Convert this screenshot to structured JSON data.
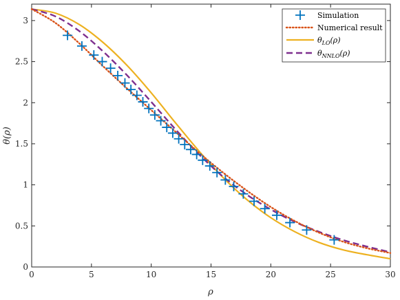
{
  "chart_data": {
    "type": "line",
    "title": "",
    "xlabel": "ρ",
    "ylabel": "θ(ρ)",
    "xlim": [
      0,
      30
    ],
    "ylim": [
      0,
      3.2
    ],
    "xticks": [
      0,
      5,
      10,
      15,
      20,
      25,
      30
    ],
    "yticks": [
      0,
      0.5,
      1,
      1.5,
      2,
      2.5,
      3
    ],
    "xtick_labels": [
      "0",
      "5",
      "10",
      "15",
      "20",
      "25",
      "30"
    ],
    "ytick_labels": [
      "0",
      "0.5",
      "1",
      "1.5",
      "2",
      "2.5",
      "3"
    ],
    "grid": false,
    "legend_position": "top-right",
    "series": [
      {
        "name": "Simulation",
        "style": "markers-plus",
        "color": "#0072BD",
        "x": [
          3.0,
          4.2,
          5.2,
          5.9,
          6.6,
          7.2,
          7.8,
          8.3,
          8.8,
          9.3,
          9.8,
          10.3,
          10.8,
          11.3,
          11.8,
          12.3,
          12.8,
          13.3,
          13.8,
          14.3,
          14.9,
          15.5,
          16.2,
          16.9,
          17.7,
          18.6,
          19.5,
          20.5,
          21.6,
          23.0,
          25.3
        ],
        "y": [
          2.82,
          2.69,
          2.58,
          2.5,
          2.42,
          2.33,
          2.24,
          2.16,
          2.09,
          2.01,
          1.93,
          1.85,
          1.78,
          1.7,
          1.63,
          1.56,
          1.49,
          1.43,
          1.37,
          1.3,
          1.23,
          1.15,
          1.06,
          0.98,
          0.89,
          0.8,
          0.71,
          0.63,
          0.54,
          0.45,
          0.33
        ]
      },
      {
        "name": "Numerical result",
        "style": "dotted",
        "color": "#D95319",
        "x": [
          0,
          2,
          4,
          6,
          8,
          10,
          12,
          14,
          16,
          18,
          20,
          22,
          24,
          26,
          28,
          30
        ],
        "y": [
          3.14,
          2.97,
          2.72,
          2.44,
          2.17,
          1.91,
          1.65,
          1.39,
          1.15,
          0.93,
          0.73,
          0.56,
          0.42,
          0.31,
          0.23,
          0.17
        ]
      },
      {
        "name": "θLO(ρ)",
        "label_base": "θ",
        "label_sub": "LO",
        "label_arg": "(ρ)",
        "style": "solid",
        "color": "#EDB120",
        "x": [
          0,
          2,
          4,
          6,
          8,
          10,
          12,
          14,
          16,
          18,
          20,
          22,
          24,
          26,
          28,
          30
        ],
        "y": [
          3.14,
          3.09,
          2.95,
          2.73,
          2.45,
          2.12,
          1.76,
          1.41,
          1.09,
          0.82,
          0.6,
          0.43,
          0.3,
          0.21,
          0.15,
          0.1
        ]
      },
      {
        "name": "θNNLO(ρ)",
        "label_base": "θ",
        "label_sub": "NNLO",
        "label_arg": "(ρ)",
        "style": "dashed",
        "color": "#7E2F8E",
        "x": [
          0,
          2,
          4,
          6,
          8,
          10,
          12,
          14,
          16,
          18,
          20,
          22,
          24,
          26,
          28,
          30
        ],
        "y": [
          3.14,
          3.05,
          2.87,
          2.62,
          2.33,
          2.01,
          1.68,
          1.37,
          1.1,
          0.88,
          0.7,
          0.55,
          0.43,
          0.33,
          0.25,
          0.18
        ]
      }
    ]
  }
}
